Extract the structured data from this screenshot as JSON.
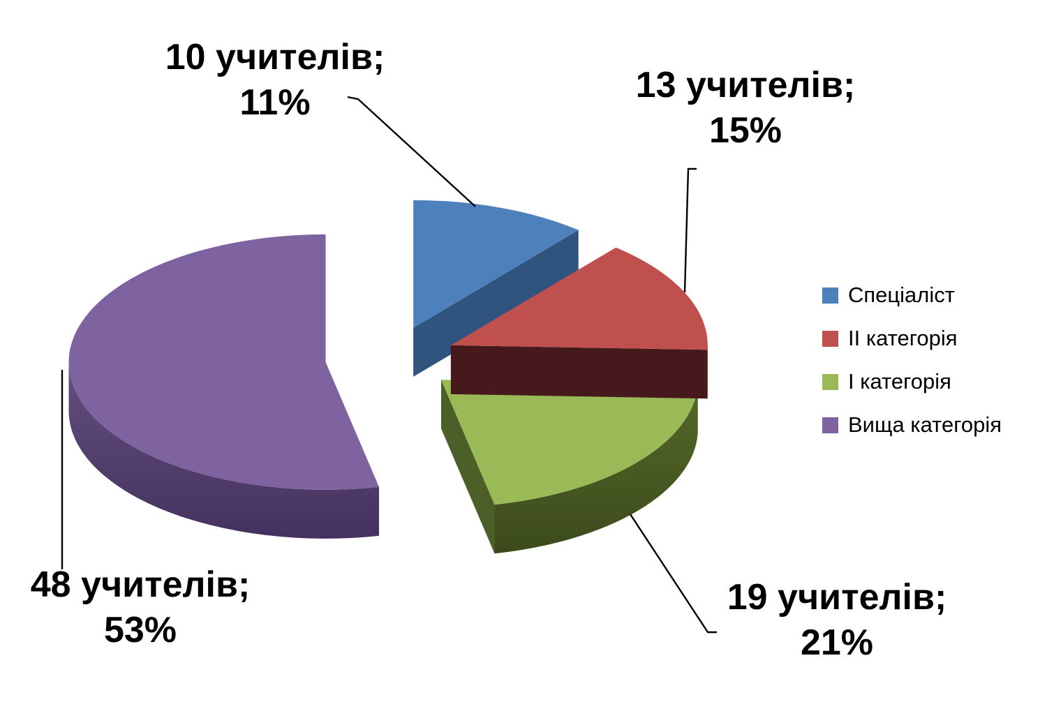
{
  "background_color": "#FFFFFF",
  "text_color": "#000000",
  "leader_line_color": "#000000",
  "chart_data": {
    "type": "pie",
    "style": "3d-exploded-pie",
    "title": "",
    "legend_position": "right",
    "categories": [
      "Спеціаліст",
      "II категорія",
      "I категорія",
      "Вища категорія"
    ],
    "values": [
      10,
      13,
      19,
      48
    ],
    "series": [
      {
        "label": "Спеціаліст",
        "value": 10,
        "percent": "11%",
        "data_label": "10 учителів; 11%",
        "color": "#4E80BC",
        "face_color": "#2F547E",
        "rim_color": "#2F547E",
        "rim_dark": "#2A4B72"
      },
      {
        "label": "II категорія",
        "value": 13,
        "percent": "15%",
        "data_label": "13 учителів; 15%",
        "color": "#C0504D",
        "face_color": "#461A1C",
        "rim_color": "#7E2D2B",
        "rim_dark": "#542022"
      },
      {
        "label": "I категорія",
        "value": 19,
        "percent": "21%",
        "data_label": "19 учителів; 21%",
        "color": "#9ABA58",
        "face_color": "#4D5F28",
        "rim_color": "#556929",
        "rim_dark": "#3C4A1B"
      },
      {
        "label": "Вища категорія",
        "value": 48,
        "percent": "53%",
        "data_label": "48 учителів; 53%",
        "color": "#7F63A1",
        "face_color": "#5D477A",
        "rim_color": "#64507F",
        "rim_dark": "#443160"
      }
    ]
  },
  "callouts": [
    {
      "line1": "10 учителів;",
      "line2": "11%"
    },
    {
      "line1": "13 учителів;",
      "line2": "15%"
    },
    {
      "line1": "19 учителів;",
      "line2": "21%"
    },
    {
      "line1": "48 учителів;",
      "line2": "53%"
    }
  ]
}
